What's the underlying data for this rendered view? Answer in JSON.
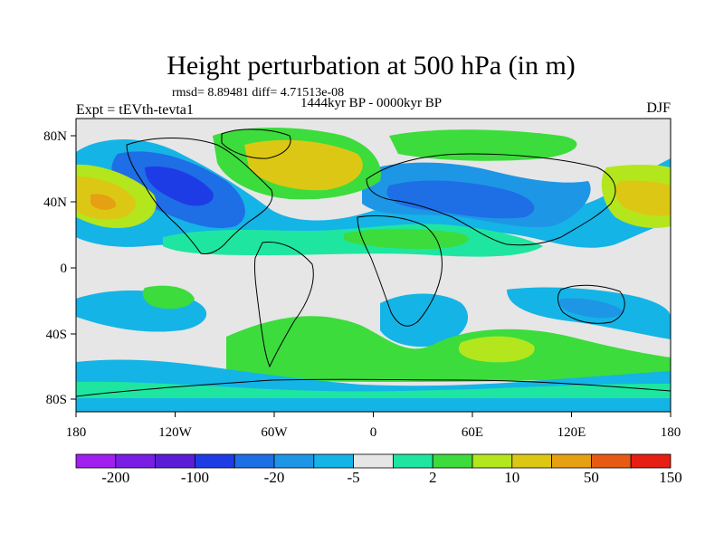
{
  "title": "Height perturbation at 500 hPa (in m)",
  "stats_line": "rmsd= 8.89481 diff= 4.71513e-08",
  "period_line": "1444kyr BP - 0000kyr BP",
  "left_label": "Expt = tEVth-tevta1",
  "right_label": "DJF",
  "lat_ticks": [
    "80N",
    "40N",
    "0",
    "40S",
    "80S"
  ],
  "lon_ticks": [
    "180",
    "120W",
    "60W",
    "0",
    "60E",
    "120E",
    "180"
  ],
  "colorbar": {
    "colors": [
      "#a020f0",
      "#7a1ee6",
      "#5a1ed8",
      "#1e3ce6",
      "#1e6ee6",
      "#1e96e6",
      "#14b4e6",
      "#e6e6e6",
      "#1ee6a0",
      "#3cdc3c",
      "#b4e61e",
      "#dcc814",
      "#e6a014",
      "#e65a14",
      "#e61e14"
    ],
    "labels": [
      "-200",
      "-100",
      "-20",
      "-5",
      "2",
      "10",
      "50",
      "150"
    ]
  },
  "colors": {
    "land_outline": "#000000",
    "neutral": "#e6e6e6"
  }
}
